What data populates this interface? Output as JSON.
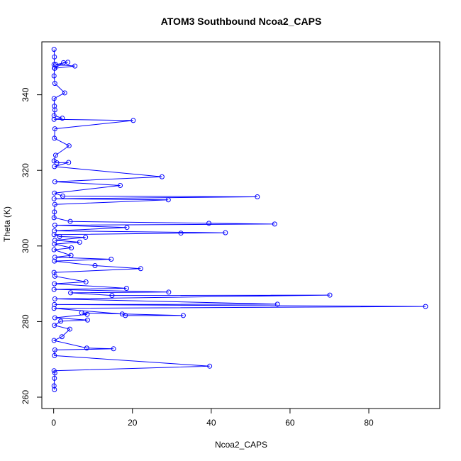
{
  "chart_data": {
    "type": "line",
    "title": "ATOM3 Southbound Ncoa2_CAPS",
    "xlabel": "Ncoa2_CAPS",
    "ylabel": "Theta (K)",
    "xlim": [
      -3,
      98
    ],
    "ylim": [
      257,
      354
    ],
    "xticks": [
      0,
      20,
      40,
      60,
      80
    ],
    "yticks": [
      260,
      280,
      300,
      320,
      340
    ],
    "grid": false,
    "legend": "none",
    "series": [
      {
        "color": "#0000ff",
        "marker": "open-circle",
        "points": [
          [
            0.1,
            352
          ],
          [
            0.2,
            350
          ],
          [
            0.1,
            348
          ],
          [
            0.3,
            347
          ],
          [
            2.5,
            348.5
          ],
          [
            3.6,
            348.6
          ],
          [
            0.5,
            348
          ],
          [
            5.4,
            347.6
          ],
          [
            0.2,
            347
          ],
          [
            0.1,
            345
          ],
          [
            0.3,
            343
          ],
          [
            2.8,
            340.5
          ],
          [
            0.1,
            339
          ],
          [
            0.2,
            337
          ],
          [
            0.3,
            336
          ],
          [
            0.1,
            334.5
          ],
          [
            2.2,
            333.8
          ],
          [
            0.1,
            333.5
          ],
          [
            20.2,
            333.2
          ],
          [
            0.3,
            331
          ],
          [
            0.2,
            328.5
          ],
          [
            3.9,
            326.5
          ],
          [
            0.5,
            324
          ],
          [
            0.1,
            322.5
          ],
          [
            0.8,
            322
          ],
          [
            3.8,
            322.1
          ],
          [
            0.2,
            321
          ],
          [
            27.5,
            318.3
          ],
          [
            0.3,
            317
          ],
          [
            16.9,
            316
          ],
          [
            0.2,
            314
          ],
          [
            2.3,
            313.2
          ],
          [
            51.7,
            313
          ],
          [
            0.1,
            312.5
          ],
          [
            29.1,
            312.2
          ],
          [
            0.3,
            311
          ],
          [
            0.2,
            309
          ],
          [
            0.1,
            307.5
          ],
          [
            4.2,
            306.5
          ],
          [
            39.4,
            306
          ],
          [
            56.1,
            305.8
          ],
          [
            0.3,
            305.5
          ],
          [
            18.6,
            304.9
          ],
          [
            0.2,
            304
          ],
          [
            43.6,
            303.5
          ],
          [
            32.3,
            303.4
          ],
          [
            0.1,
            303
          ],
          [
            1.5,
            302.5
          ],
          [
            8.1,
            302.3
          ],
          [
            0.3,
            301.5
          ],
          [
            6.6,
            301
          ],
          [
            0.2,
            300.5
          ],
          [
            4.5,
            299.5
          ],
          [
            0.1,
            299
          ],
          [
            4.4,
            297.5
          ],
          [
            0.3,
            297
          ],
          [
            14.6,
            296.5
          ],
          [
            0.2,
            296
          ],
          [
            10.5,
            294.8
          ],
          [
            22.1,
            294
          ],
          [
            0.1,
            293
          ],
          [
            0.3,
            292
          ],
          [
            8.2,
            290.5
          ],
          [
            0.2,
            290
          ],
          [
            18.5,
            288.8
          ],
          [
            0.1,
            288.5
          ],
          [
            29.2,
            287.8
          ],
          [
            4.3,
            287.6
          ],
          [
            14.8,
            286.9
          ],
          [
            70.1,
            287
          ],
          [
            0.3,
            286
          ],
          [
            56.8,
            284.6
          ],
          [
            0.2,
            284.5
          ],
          [
            94.4,
            284
          ],
          [
            0.1,
            283.5
          ],
          [
            17.4,
            282
          ],
          [
            18.2,
            281.6
          ],
          [
            32.9,
            281.6
          ],
          [
            7.1,
            282.3
          ],
          [
            8.5,
            281.9
          ],
          [
            0.3,
            281
          ],
          [
            8.6,
            280.4
          ],
          [
            1.8,
            280.1
          ],
          [
            0.2,
            279
          ],
          [
            4.1,
            278
          ],
          [
            2.1,
            276
          ],
          [
            0.1,
            275
          ],
          [
            8.4,
            273
          ],
          [
            15.2,
            272.8
          ],
          [
            0.3,
            272.5
          ],
          [
            0.2,
            271
          ],
          [
            39.6,
            268.2
          ],
          [
            0.1,
            267
          ],
          [
            0.3,
            266.4
          ],
          [
            0.2,
            265
          ],
          [
            0.1,
            263
          ],
          [
            0.2,
            262
          ]
        ]
      }
    ]
  }
}
